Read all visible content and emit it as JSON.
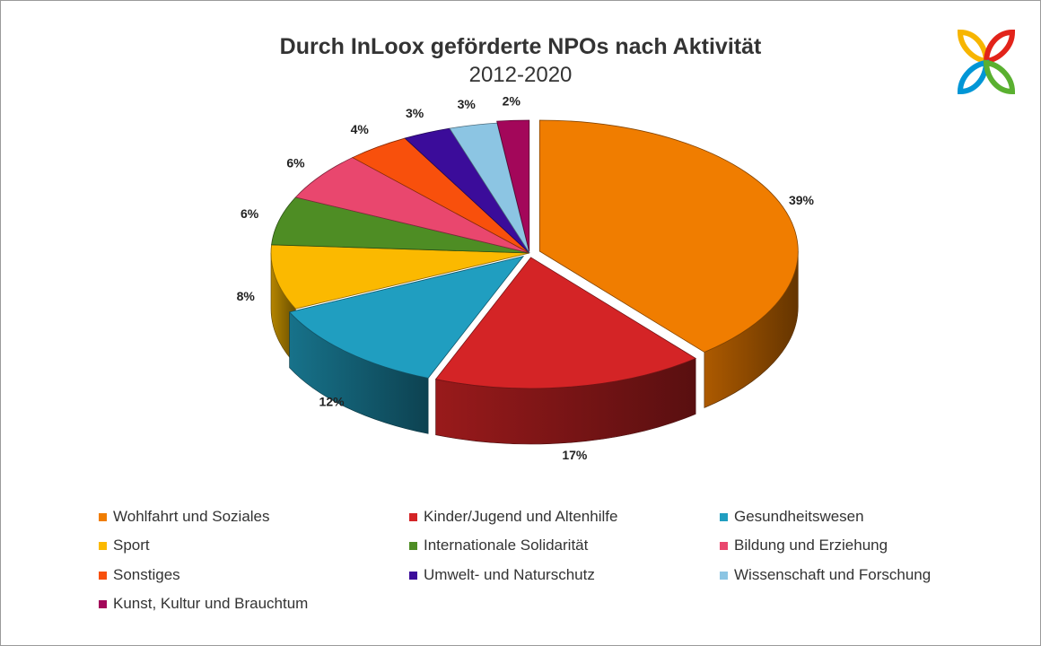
{
  "chart_data": {
    "type": "pie",
    "title": "Durch InLoox geförderte NPOs nach Aktivität",
    "subtitle": "2012-2020",
    "slices": [
      {
        "label": "Wohlfahrt und Soziales",
        "value": 39,
        "display": "39%",
        "color": "#F07D00"
      },
      {
        "label": "Kinder/Jugend und Altenhilfe",
        "value": 17,
        "display": "17%",
        "color": "#D42426"
      },
      {
        "label": "Gesundheitswesen",
        "value": 12,
        "display": "12%",
        "color": "#209EC0"
      },
      {
        "label": "Sport",
        "value": 8,
        "display": "8%",
        "color": "#FBB900"
      },
      {
        "label": "Internationale Solidarität",
        "value": 6,
        "display": "6%",
        "color": "#4E8D24"
      },
      {
        "label": "Bildung und Erziehung",
        "value": 6,
        "display": "6%",
        "color": "#E9476E"
      },
      {
        "label": "Sonstiges",
        "value": 4,
        "display": "4%",
        "color": "#F8500C"
      },
      {
        "label": "Umwelt- und Naturschutz",
        "value": 3,
        "display": "3%",
        "color": "#3B0C9A"
      },
      {
        "label": "Wissenschaft und Forschung",
        "value": 3,
        "display": "3%",
        "color": "#8CC5E3"
      },
      {
        "label": "Kunst, Kultur und Brauchtum",
        "value": 2,
        "display": "2%",
        "color": "#A3075A"
      }
    ],
    "legend_position": "bottom"
  },
  "logo": {
    "colors": [
      "#F7B500",
      "#E2231A",
      "#0096D6",
      "#5AB030"
    ]
  }
}
